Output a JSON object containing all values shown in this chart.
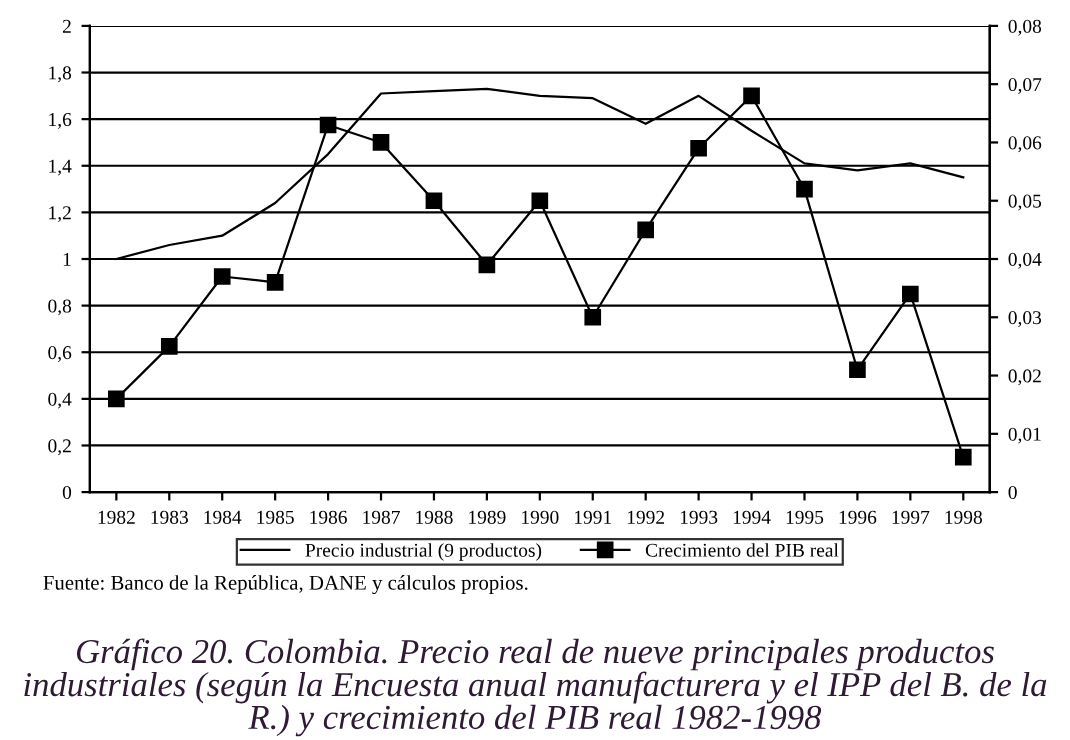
{
  "chart_data": {
    "type": "line",
    "title": "Gráfico 20. Colombia. Precio real de nueve principales productos industriales (según la Encuesta anual manufacturera y el IPP del B. de la R.) y crecimiento del PIB real 1982-1998",
    "annotations": [
      "Fuente: Banco de la República, DANE y cálculos propios."
    ],
    "categories": [
      "1982",
      "1983",
      "1984",
      "1985",
      "1986",
      "1987",
      "1988",
      "1989",
      "1990",
      "1991",
      "1992",
      "1993",
      "1994",
      "1995",
      "1996",
      "1997",
      "1998"
    ],
    "series": [
      {
        "name": "Precio industrial (9 productos)",
        "color": "#000000",
        "marker": "none",
        "values": [
          1.0,
          1.06,
          1.1,
          1.24,
          1.45,
          1.71,
          1.72,
          1.73,
          1.7,
          1.69,
          1.58,
          1.7,
          1.55,
          1.41,
          1.38,
          1.41,
          1.35
        ]
      },
      {
        "name": "Crecimiento del PIB real",
        "color": "#000000",
        "marker": "square",
        "axis": "y2",
        "values": [
          0.016,
          0.025,
          0.037,
          0.036,
          0.063,
          0.06,
          0.05,
          0.039,
          0.05,
          0.03,
          0.045,
          0.059,
          0.068,
          0.052,
          0.021,
          0.034,
          0.006
        ]
      }
    ],
    "ylim": [
      0,
      2
    ],
    "yticks": [
      0,
      {
        "value": 0.2,
        "label": "0,2"
      },
      {
        "value": 0.4,
        "label": "0,4"
      },
      {
        "value": 0.6,
        "label": "0,6"
      },
      {
        "value": 0.8,
        "label": "0,8"
      },
      1,
      {
        "value": 1.2,
        "label": "1,2"
      },
      {
        "value": 1.4,
        "label": "1,4"
      },
      {
        "value": 1.6,
        "label": "1,6"
      },
      {
        "value": 1.8,
        "label": "1,8"
      },
      2
    ],
    "y2lim": [
      0,
      0.08
    ],
    "y2ticks": [
      0,
      {
        "value": 0.01,
        "label": "0,01"
      },
      {
        "value": 0.02,
        "label": "0,02"
      },
      {
        "value": 0.03,
        "label": "0,03"
      },
      {
        "value": 0.04,
        "label": "0,04"
      },
      {
        "value": 0.05,
        "label": "0,05"
      },
      {
        "value": 0.06,
        "label": "0,06"
      },
      {
        "value": 0.07,
        "label": "0,07"
      },
      {
        "value": 0.08,
        "label": "0,08"
      }
    ],
    "grid": "y",
    "legend": "bottom"
  }
}
